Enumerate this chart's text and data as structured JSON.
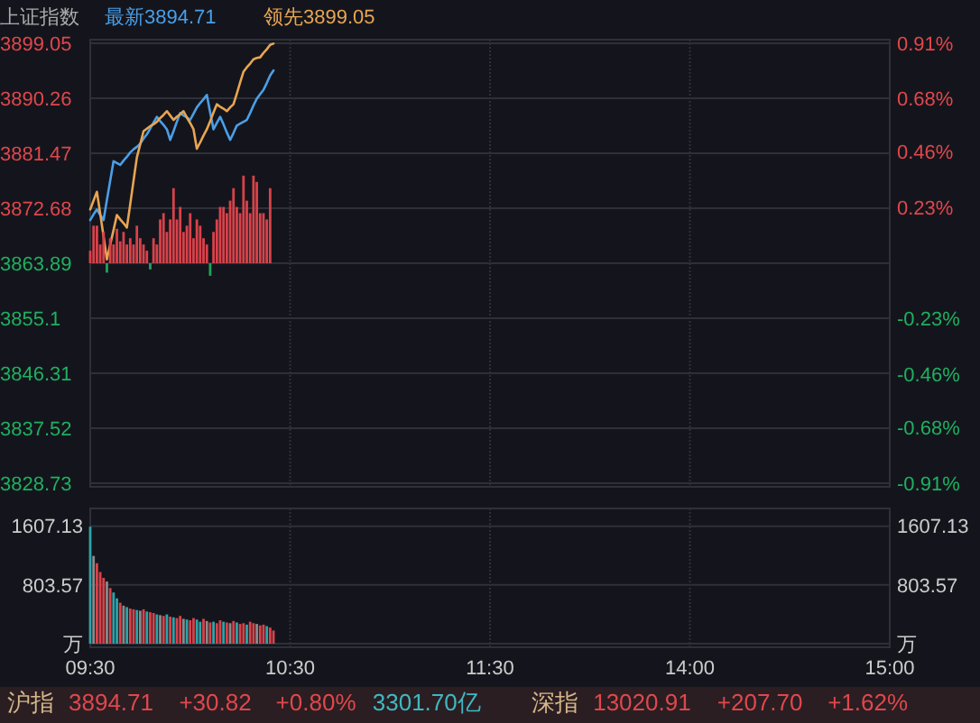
{
  "chart_data": [
    {
      "type": "line",
      "title": "上证指数",
      "legend": "top left",
      "grid": true,
      "tick_labels": "y",
      "categories": [
        null,
        null,
        null,
        null,
        null,
        null,
        null,
        null,
        null,
        null,
        null,
        null,
        null,
        null,
        null,
        null,
        null,
        null,
        null,
        null,
        null,
        null,
        null,
        null,
        null,
        null,
        null,
        null,
        null,
        null,
        null,
        null,
        null,
        null,
        null,
        null,
        null,
        null,
        null,
        null,
        null,
        null,
        null,
        null,
        null,
        null,
        null,
        null,
        null,
        null,
        null,
        null,
        null,
        null,
        null,
        null,
        null,
        null,
        null,
        null,
        null,
        null,
        null,
        null,
        null,
        null,
        null,
        null,
        null,
        null,
        null,
        null,
        null,
        null,
        null,
        null,
        null,
        null,
        null,
        null,
        null,
        null,
        null,
        null,
        null,
        null,
        null,
        null,
        null,
        null,
        null,
        null,
        null,
        null,
        null,
        null,
        null,
        null,
        null,
        null,
        null,
        null,
        null,
        null,
        null,
        null,
        null,
        null,
        null,
        null,
        null,
        null,
        null,
        null,
        null,
        null,
        null,
        null,
        null,
        null,
        null,
        null,
        null,
        null,
        null,
        null,
        null,
        null,
        null,
        null,
        null,
        null,
        null,
        null,
        null,
        null,
        null,
        null,
        null,
        null,
        null,
        null,
        null,
        null,
        null,
        null,
        null,
        null,
        null,
        null,
        null,
        null,
        null,
        null,
        null,
        null,
        null,
        null,
        null,
        null,
        null,
        null,
        null,
        null,
        null,
        null,
        null,
        null,
        null,
        null,
        null,
        null,
        null,
        null,
        null,
        null,
        null,
        null,
        null,
        null,
        null,
        null,
        null,
        null,
        null,
        null,
        null,
        null,
        null,
        null,
        null,
        null,
        null,
        null,
        null,
        null,
        null,
        null,
        null,
        null,
        null,
        null,
        null,
        null,
        null,
        null,
        null,
        null,
        null,
        null,
        null,
        null,
        null,
        null,
        null,
        null,
        null,
        null,
        null,
        null,
        null,
        null,
        null,
        null,
        null,
        null,
        null,
        null,
        null,
        null,
        null,
        null,
        null,
        null,
        null,
        null,
        null,
        null,
        null,
        null,
        null
      ],
      "ylim": [
        3828.73,
        3899.05
      ],
      "yticks": [
        3828.73,
        3837.52,
        3846.31,
        3855.1,
        3863.89,
        3872.68,
        3881.47,
        3890.26,
        3899.05
      ],
      "y2lim": [
        -0.91,
        0.91
      ],
      "y2ticks": [
        {
          "value": -0.91,
          "label": "-0.91%"
        },
        {
          "value": -0.68,
          "label": "-0.68%"
        },
        {
          "value": -0.46,
          "label": "-0.46%"
        },
        {
          "value": -0.23,
          "label": "-0.23%"
        },
        {
          "value": 0.23,
          "label": "0.23%"
        },
        {
          "value": 0.46,
          "label": "0.46%"
        },
        {
          "value": 0.68,
          "label": "0.68%"
        },
        {
          "value": 0.91,
          "label": "0.91%"
        }
      ],
      "series": [
        {
          "name": "最新3894.71",
          "color": "#4a9fe8",
          "values": [
            3870.8,
            3871.7,
            3872.5,
            3871.6,
            3870.8,
            3874.0,
            3877.1,
            3880.2,
            3879.9,
            3879.6,
            3880.3,
            3880.9,
            3881.6,
            3882.1,
            3882.5,
            3883.0,
            3883.8,
            3884.5,
            3885.4,
            3886.4,
            3887.3,
            3886.6,
            3886.0,
            3885.3,
            3883.6,
            3885.0,
            3886.5,
            3887.9,
            3887.5,
            3887.2,
            3886.8,
            3887.8,
            3888.8,
            3889.5,
            3890.1,
            3890.8,
            3888.0,
            3885.3,
            3886.3,
            3887.3,
            3886.1,
            3884.8,
            3883.6,
            3884.7,
            3885.9,
            3886.2,
            3886.5,
            3886.8,
            3887.9,
            3889.1,
            3890.2,
            3890.9,
            3891.6,
            3892.7,
            3893.9,
            3894.7,
            null,
            null,
            null,
            null,
            null,
            null,
            null,
            null,
            null,
            null,
            null,
            null,
            null,
            null,
            null,
            null,
            null,
            null,
            null,
            null,
            null,
            null,
            null,
            null,
            null,
            null,
            null,
            null,
            null,
            null,
            null,
            null,
            null,
            null,
            null,
            null,
            null,
            null,
            null,
            null,
            null,
            null,
            null,
            null,
            null,
            null,
            null,
            null,
            null,
            null,
            null,
            null,
            null,
            null,
            null,
            null,
            null,
            null,
            null,
            null,
            null,
            null,
            null,
            null,
            null,
            null,
            null,
            null,
            null,
            null,
            null,
            null,
            null,
            null,
            null,
            null,
            null,
            null,
            null,
            null,
            null,
            null,
            null,
            null,
            null,
            null,
            null,
            null,
            null,
            null,
            null,
            null,
            null,
            null,
            null,
            null,
            null,
            null,
            null,
            null,
            null,
            null,
            null,
            null,
            null,
            null,
            null,
            null,
            null,
            null,
            null,
            null,
            null,
            null,
            null,
            null,
            null,
            null,
            null,
            null,
            null,
            null,
            null,
            null,
            null,
            null,
            null,
            null,
            null,
            null,
            null,
            null,
            null,
            null,
            null,
            null,
            null,
            null,
            null,
            null,
            null,
            null,
            null,
            null,
            null,
            null,
            null,
            null,
            null,
            null,
            null,
            null,
            null,
            null,
            null,
            null,
            null,
            null,
            null,
            null,
            null,
            null,
            null,
            null,
            null,
            null,
            null,
            null,
            null,
            null,
            null,
            null,
            null,
            null,
            null,
            null,
            null,
            null,
            null,
            null,
            null,
            null,
            null,
            null,
            null
          ]
        },
        {
          "name": "领先3899.05",
          "color": "#e8a552",
          "values": [
            3872.5,
            3873.9,
            3875.3,
            3871.8,
            3868.2,
            3864.5,
            3866.9,
            3869.2,
            3871.6,
            3870.9,
            3870.3,
            3869.6,
            3873.3,
            3877.1,
            3880.8,
            3882.9,
            3885.0,
            3885.4,
            3885.8,
            3886.1,
            3886.5,
            3887.1,
            3887.6,
            3888.2,
            3887.5,
            3886.8,
            3887.3,
            3887.7,
            3888.2,
            3887.2,
            3886.3,
            3885.3,
            3882.2,
            3883.2,
            3884.3,
            3885.3,
            3886.6,
            3888.0,
            3889.3,
            3888.9,
            3888.6,
            3888.2,
            3888.8,
            3889.3,
            3891.0,
            3892.8,
            3894.5,
            3895.2,
            3895.8,
            3896.5,
            3896.7,
            3896.8,
            3897.5,
            3898.1,
            3898.8,
            3899.0,
            null,
            null,
            null,
            null,
            null,
            null,
            null,
            null,
            null,
            null,
            null,
            null,
            null,
            null,
            null,
            null,
            null,
            null,
            null,
            null,
            null,
            null,
            null,
            null,
            null,
            null,
            null,
            null,
            null,
            null,
            null,
            null,
            null,
            null,
            null,
            null,
            null,
            null,
            null,
            null,
            null,
            null,
            null,
            null,
            null,
            null,
            null,
            null,
            null,
            null,
            null,
            null,
            null,
            null,
            null,
            null,
            null,
            null,
            null,
            null,
            null,
            null,
            null,
            null,
            null,
            null,
            null,
            null,
            null,
            null,
            null,
            null,
            null,
            null,
            null,
            null,
            null,
            null,
            null,
            null,
            null,
            null,
            null,
            null,
            null,
            null,
            null,
            null,
            null,
            null,
            null,
            null,
            null,
            null,
            null,
            null,
            null,
            null,
            null,
            null,
            null,
            null,
            null,
            null,
            null,
            null,
            null,
            null,
            null,
            null,
            null,
            null,
            null,
            null,
            null,
            null,
            null,
            null,
            null,
            null,
            null,
            null,
            null,
            null,
            null,
            null,
            null,
            null,
            null,
            null,
            null,
            null,
            null,
            null,
            null,
            null,
            null,
            null,
            null,
            null,
            null,
            null,
            null,
            null,
            null,
            null,
            null,
            null,
            null,
            null,
            null,
            null,
            null,
            null,
            null,
            null,
            null,
            null,
            null,
            null,
            null,
            null,
            null,
            null,
            null,
            null,
            null,
            null,
            null,
            null,
            null,
            null,
            null,
            null,
            null,
            null,
            null,
            null,
            null,
            null,
            null,
            null,
            null,
            null,
            null
          ]
        },
        {
          "type": "bar",
          "values": [
            2,
            6,
            6,
            3,
            5,
            -1.5,
            4,
            3,
            5.5,
            3.5,
            5,
            3,
            4,
            3,
            6,
            4,
            3,
            2,
            -1,
            4,
            3,
            7,
            8,
            5,
            7,
            12,
            7,
            9,
            5,
            6,
            8,
            4,
            7,
            6,
            4,
            3,
            -2,
            5,
            7,
            9,
            9,
            8,
            10,
            12,
            9,
            8,
            14,
            10,
            8,
            14,
            13,
            8,
            8,
            7,
            12,
            null,
            null,
            null,
            null,
            null,
            null,
            null,
            null,
            null,
            null,
            null,
            null,
            null,
            null,
            null,
            null,
            null,
            null,
            null,
            null,
            null,
            null,
            null,
            null,
            null,
            null,
            null,
            null,
            null,
            null,
            null,
            null,
            null,
            null,
            null,
            null,
            null,
            null,
            null,
            null,
            null,
            null,
            null,
            null,
            null,
            null,
            null,
            null,
            null,
            null,
            null,
            null,
            null,
            null,
            null,
            null,
            null,
            null,
            null,
            null,
            null,
            null,
            null,
            null,
            null,
            null,
            null,
            null,
            null,
            null,
            null,
            null,
            null,
            null,
            null,
            null,
            null,
            null,
            null,
            null,
            null,
            null,
            null,
            null,
            null,
            null,
            null,
            null,
            null,
            null,
            null,
            null,
            null,
            null,
            null,
            null,
            null,
            null,
            null,
            null,
            null,
            null,
            null,
            null,
            null,
            null,
            null,
            null,
            null,
            null,
            null,
            null,
            null,
            null,
            null,
            null,
            null,
            null,
            null,
            null,
            null,
            null,
            null,
            null,
            null,
            null,
            null,
            null,
            null,
            null,
            null,
            null,
            null,
            null,
            null,
            null,
            null,
            null,
            null,
            null,
            null,
            null,
            null,
            null,
            null,
            null,
            null,
            null,
            null,
            null,
            null,
            null,
            null,
            null,
            null,
            null,
            null,
            null,
            null,
            null,
            null,
            null,
            null,
            null,
            null,
            null,
            null,
            null,
            null,
            null,
            null,
            null,
            null,
            null,
            null,
            null,
            null,
            null,
            null,
            null,
            null,
            null,
            null,
            null,
            null,
            null
          ],
          "base": [
            3863.89,
            3863.89,
            3863.89,
            3863.89,
            3863.89,
            3863.89,
            3863.89,
            3863.89,
            3863.89,
            3863.89,
            3863.89,
            3863.89,
            3863.89,
            3863.89,
            3863.89,
            3863.89,
            3863.89,
            3863.89,
            3863.89,
            3863.89,
            3863.89,
            3863.89,
            3863.89,
            3863.89,
            3863.89,
            3863.89,
            3863.89,
            3863.89,
            3863.89,
            3863.89,
            3863.89,
            3863.89,
            3863.89,
            3863.89,
            3863.89,
            3863.89,
            3863.89,
            3863.89,
            3863.89,
            3863.89,
            3863.89,
            3863.89,
            3863.89,
            3863.89,
            3863.89,
            3863.89,
            3863.89,
            3863.89,
            3863.89,
            3863.89,
            3863.89,
            3863.89,
            3863.89,
            3863.89,
            3863.89,
            null,
            null,
            null,
            null,
            null,
            null,
            null,
            null,
            null,
            null,
            null,
            null,
            null,
            null,
            null,
            null,
            null,
            null,
            null,
            null,
            null,
            null,
            null,
            null,
            null,
            null,
            null,
            null,
            null,
            null,
            null,
            null,
            null,
            null,
            null,
            null,
            null,
            null,
            null,
            null,
            null,
            null,
            null,
            null,
            null,
            null,
            null,
            null,
            null,
            null,
            null,
            null,
            null,
            null,
            null,
            null,
            null,
            null,
            null,
            null,
            null,
            null,
            null,
            null,
            null,
            null,
            null,
            null,
            null,
            null,
            null,
            null,
            null,
            null,
            null,
            null,
            null,
            null,
            null,
            null,
            null,
            null,
            null,
            null,
            null,
            null,
            null,
            null,
            null,
            null,
            null,
            null,
            null,
            null,
            null,
            null,
            null,
            null,
            null,
            null,
            null,
            null,
            null,
            null,
            null,
            null,
            null,
            null,
            null,
            null,
            null,
            null,
            null,
            null,
            null,
            null,
            null,
            null,
            null,
            null,
            null,
            null,
            null,
            null,
            null,
            null,
            null,
            null,
            null,
            null,
            null,
            null,
            null,
            null,
            null,
            null,
            null,
            null,
            null,
            null,
            null,
            null,
            null,
            null,
            null,
            null,
            null,
            null,
            null,
            null,
            null,
            null,
            null,
            null,
            null,
            null,
            null,
            null,
            null,
            null,
            null,
            null,
            null,
            null,
            null,
            null,
            null,
            null,
            null,
            null,
            null,
            null,
            null,
            null,
            null,
            null,
            null,
            null,
            null,
            null,
            null,
            null,
            null,
            null,
            null,
            null
          ],
          "colors": [
            "#d9424a",
            "#d9424a",
            "#d9424a",
            "#d9424a",
            "#d9424a",
            "#1fa35a",
            "#d9424a",
            "#d9424a",
            "#d9424a",
            "#d9424a",
            "#d9424a",
            "#d9424a",
            "#d9424a",
            "#d9424a",
            "#d9424a",
            "#d9424a",
            "#d9424a",
            "#d9424a",
            "#1fa35a",
            "#d9424a",
            "#d9424a",
            "#d9424a",
            "#d9424a",
            "#d9424a",
            "#d9424a",
            "#d9424a",
            "#d9424a",
            "#d9424a",
            "#d9424a",
            "#d9424a",
            "#d9424a",
            "#d9424a",
            "#d9424a",
            "#d9424a",
            "#d9424a",
            "#d9424a",
            "#1fa35a",
            "#d9424a",
            "#d9424a",
            "#d9424a",
            "#d9424a",
            "#d9424a",
            "#d9424a",
            "#d9424a",
            "#d9424a",
            "#d9424a",
            "#d9424a",
            "#d9424a",
            "#d9424a",
            "#d9424a",
            "#d9424a",
            "#d9424a",
            "#d9424a",
            "#d9424a",
            "#d9424a",
            null,
            null,
            null,
            null,
            null,
            null,
            null,
            null,
            null,
            null,
            null,
            null,
            null,
            null,
            null,
            null,
            null,
            null,
            null,
            null,
            null,
            null,
            null,
            null,
            null,
            null,
            null,
            null,
            null,
            null,
            null,
            null,
            null,
            null,
            null,
            null,
            null,
            null,
            null,
            null,
            null,
            null,
            null,
            null,
            null,
            null,
            null,
            null,
            null,
            null,
            null,
            null,
            null,
            null,
            null,
            null,
            null,
            null,
            null,
            null,
            null,
            null,
            null,
            null,
            null,
            null,
            null,
            null,
            null,
            null,
            null,
            null,
            null,
            null,
            null,
            null,
            null,
            null,
            null,
            null,
            null,
            null,
            null,
            null,
            null,
            null,
            null,
            null,
            null,
            null,
            null,
            null,
            null,
            null,
            null,
            null,
            null,
            null,
            null,
            null,
            null,
            null,
            null,
            null,
            null,
            null,
            null,
            null,
            null,
            null,
            null,
            null,
            null,
            null,
            null,
            null,
            null,
            null,
            null,
            null,
            null,
            null,
            null,
            null,
            null,
            null,
            null,
            null,
            null,
            null,
            null,
            null,
            null,
            null,
            null,
            null,
            null,
            null,
            null,
            null,
            null,
            null,
            null,
            null,
            null,
            null,
            null,
            null,
            null,
            null,
            null,
            null,
            null,
            null,
            null,
            null,
            null,
            null,
            null,
            null,
            null,
            null,
            null,
            null,
            null,
            null,
            null,
            null,
            null,
            null,
            null,
            null,
            null,
            null,
            null,
            null,
            null,
            null,
            null,
            null,
            null,
            null,
            null,
            null,
            null,
            null
          ]
        }
      ]
    },
    {
      "type": "bar",
      "grid": true,
      "categories": [
        "09:30",
        null,
        null,
        null,
        null,
        null,
        null,
        null,
        null,
        null,
        null,
        null,
        null,
        null,
        null,
        null,
        null,
        null,
        null,
        null,
        null,
        null,
        null,
        null,
        null,
        null,
        null,
        null,
        null,
        null,
        null,
        null,
        null,
        null,
        null,
        null,
        null,
        null,
        null,
        null,
        null,
        null,
        null,
        null,
        null,
        null,
        null,
        null,
        null,
        null,
        null,
        null,
        null,
        null,
        null,
        null,
        null,
        null,
        null,
        null,
        "10:30",
        null,
        null,
        null,
        null,
        null,
        null,
        null,
        null,
        null,
        null,
        null,
        null,
        null,
        null,
        null,
        null,
        null,
        null,
        null,
        null,
        null,
        null,
        null,
        null,
        null,
        null,
        null,
        null,
        null,
        null,
        null,
        null,
        null,
        null,
        null,
        null,
        null,
        null,
        null,
        null,
        null,
        null,
        null,
        null,
        null,
        null,
        null,
        null,
        null,
        null,
        null,
        null,
        null,
        null,
        null,
        null,
        null,
        null,
        null,
        "11:30",
        null,
        null,
        null,
        null,
        null,
        null,
        null,
        null,
        null,
        null,
        null,
        null,
        null,
        null,
        null,
        null,
        null,
        null,
        null,
        null,
        null,
        null,
        null,
        null,
        null,
        null,
        null,
        null,
        null,
        null,
        null,
        null,
        null,
        null,
        null,
        null,
        null,
        null,
        null,
        null,
        null,
        null,
        null,
        null,
        null,
        null,
        null,
        null,
        null,
        null,
        null,
        null,
        null,
        null,
        null,
        null,
        null,
        null,
        null,
        "14:00",
        null,
        null,
        null,
        null,
        null,
        null,
        null,
        null,
        null,
        null,
        null,
        null,
        null,
        null,
        null,
        null,
        null,
        null,
        null,
        null,
        null,
        null,
        null,
        null,
        null,
        null,
        null,
        null,
        null,
        null,
        null,
        null,
        null,
        null,
        null,
        null,
        null,
        null,
        null,
        null,
        null,
        null,
        null,
        null,
        null,
        null,
        null,
        null,
        null,
        null,
        null,
        null,
        null,
        null,
        null,
        null,
        null,
        null,
        null,
        "15:00"
      ],
      "ylim": [
        0,
        1800
      ],
      "yticks": [
        {
          "value": 0,
          "label": "万"
        },
        803.57,
        1607.13
      ],
      "y2lim": [
        0,
        1800
      ],
      "y2ticks": [
        {
          "value": 0,
          "label": "万"
        },
        803.57,
        1607.13
      ],
      "values": [
        1600,
        1200,
        1100,
        980,
        900,
        850,
        760,
        700,
        620,
        560,
        520,
        500,
        480,
        470,
        460,
        450,
        470,
        440,
        430,
        420,
        400,
        390,
        380,
        400,
        370,
        360,
        350,
        380,
        340,
        330,
        320,
        350,
        330,
        300,
        340,
        310,
        290,
        300,
        280,
        320,
        300,
        290,
        280,
        310,
        290,
        270,
        280,
        260,
        300,
        280,
        270,
        250,
        260,
        240,
        220,
        180,
        null,
        null,
        null,
        null,
        null,
        null,
        null,
        null,
        null,
        null,
        null,
        null,
        null,
        null,
        null,
        null,
        null,
        null,
        null,
        null,
        null,
        null,
        null,
        null,
        null,
        null,
        null,
        null,
        null,
        null,
        null,
        null,
        null,
        null,
        null,
        null,
        null,
        null,
        null,
        null,
        null,
        null,
        null,
        null,
        null,
        null,
        null,
        null,
        null,
        null,
        null,
        null,
        null,
        null,
        null,
        null,
        null,
        null,
        null,
        null,
        null,
        null,
        null,
        null,
        null,
        null,
        null,
        null,
        null,
        null,
        null,
        null,
        null,
        null,
        null,
        null,
        null,
        null,
        null,
        null,
        null,
        null,
        null,
        null,
        null,
        null,
        null,
        null,
        null,
        null,
        null,
        null,
        null,
        null,
        null,
        null,
        null,
        null,
        null,
        null,
        null,
        null,
        null,
        null,
        null,
        null,
        null,
        null,
        null,
        null,
        null,
        null,
        null,
        null,
        null,
        null,
        null,
        null,
        null,
        null,
        null,
        null,
        null,
        null,
        null,
        null,
        null,
        null,
        null,
        null,
        null,
        null,
        null,
        null,
        null,
        null,
        null,
        null,
        null,
        null,
        null,
        null,
        null,
        null,
        null,
        null,
        null,
        null,
        null,
        null,
        null,
        null,
        null,
        null,
        null,
        null,
        null,
        null,
        null,
        null,
        null,
        null,
        null,
        null,
        null,
        null,
        null,
        null,
        null,
        null,
        null,
        null,
        null,
        null,
        null,
        null,
        null,
        null,
        null,
        null,
        null,
        null,
        null,
        null,
        null
      ],
      "colors": [
        "#2fa3a8",
        "#8a8a8a",
        "#d9424a",
        "#d9424a",
        "#d9424a",
        "#8a8a8a",
        "#d9424a",
        "#2fa3a8",
        "#2fa3a8",
        "#d9424a",
        "#8a8a8a",
        "#2fa3a8",
        "#d9424a",
        "#d9424a",
        "#2fa3a8",
        "#8a8a8a",
        "#d9424a",
        "#2fa3a8",
        "#d9424a",
        "#d9424a",
        "#2fa3a8",
        "#8a8a8a",
        "#d9424a",
        "#2fa3a8",
        "#d9424a",
        "#2fa3a8",
        "#d9424a",
        "#d9424a",
        "#8a8a8a",
        "#2fa3a8",
        "#d9424a",
        "#d9424a",
        "#2fa3a8",
        "#2fa3a8",
        "#d9424a",
        "#8a8a8a",
        "#d9424a",
        "#2fa3a8",
        "#d9424a",
        "#d9424a",
        "#2fa3a8",
        "#d9424a",
        "#8a8a8a",
        "#d9424a",
        "#2fa3a8",
        "#d9424a",
        "#d9424a",
        "#2fa3a8",
        "#d9424a",
        "#d9424a",
        "#8a8a8a",
        "#d9424a",
        "#d9424a",
        "#2fa3a8",
        "#d9424a",
        "#d9424a",
        null,
        null,
        null,
        null,
        null,
        null,
        null,
        null,
        null,
        null,
        null,
        null,
        null,
        null,
        null,
        null,
        null,
        null,
        null,
        null,
        null,
        null,
        null,
        null,
        null,
        null,
        null,
        null,
        null,
        null,
        null,
        null,
        null,
        null,
        null,
        null,
        null,
        null,
        null,
        null,
        null,
        null,
        null,
        null,
        null,
        null,
        null,
        null,
        null,
        null,
        null,
        null,
        null,
        null,
        null,
        null,
        null,
        null,
        null,
        null,
        null,
        null,
        null,
        null,
        null,
        null,
        null,
        null,
        null,
        null,
        null,
        null,
        null,
        null,
        null,
        null,
        null,
        null,
        null,
        null,
        null,
        null,
        null,
        null,
        null,
        null,
        null,
        null,
        null,
        null,
        null,
        null,
        null,
        null,
        null,
        null,
        null,
        null,
        null,
        null,
        null,
        null,
        null,
        null,
        null,
        null,
        null,
        null,
        null,
        null,
        null,
        null,
        null,
        null,
        null,
        null,
        null,
        null,
        null,
        null,
        null,
        null,
        null,
        null,
        null,
        null,
        null,
        null,
        null,
        null,
        null,
        null,
        null,
        null,
        null,
        null,
        null,
        null,
        null,
        null,
        null,
        null,
        null,
        null,
        null,
        null,
        null,
        null,
        null,
        null,
        null,
        null,
        null,
        null,
        null,
        null,
        null,
        null,
        null,
        null,
        null,
        null,
        null,
        null,
        null,
        null,
        null,
        null,
        null,
        null,
        null,
        null,
        null,
        null,
        null,
        null,
        null,
        null,
        null,
        null,
        null,
        null,
        null,
        null,
        null
      ],
      "annotations": [
        "沪指",
        "3894.71",
        "+30.82",
        "+0.80%",
        "3301.70亿",
        "深指",
        "13020.91",
        "+207.70",
        "+1.62%"
      ]
    }
  ]
}
